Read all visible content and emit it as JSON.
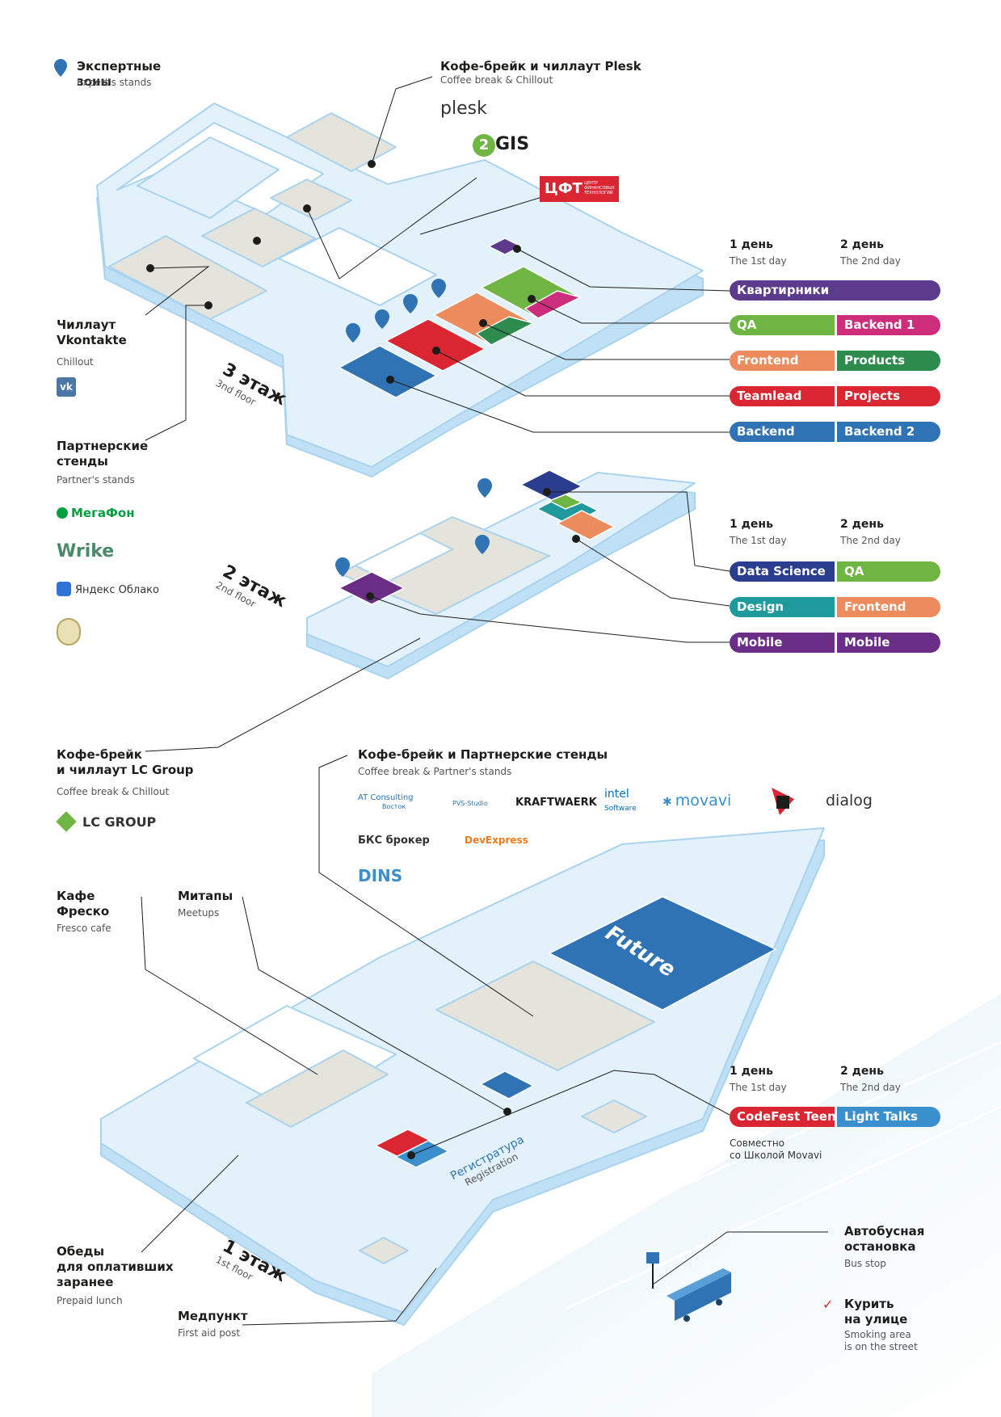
{
  "legend": {
    "expert_title": "Экспертные зоны",
    "expert_sub": "Expert's stands"
  },
  "plesk_zone": {
    "title": "Кофе-брейк и чиллаут Plesk",
    "sub": "Coffee break & Chillout",
    "logo_plesk": "plesk",
    "logo_2gis": "GIS",
    "logo_2gis_num": "2",
    "logo_cft": "ЦФТ",
    "logo_cft_small": "ЦЕНТР\nФИНАНСОВЫХ\nТЕХНОЛОГИЙ"
  },
  "vk_zone": {
    "title": "Чиллаут\nVkontakte",
    "sub": "Chillout",
    "logo": "vk"
  },
  "partners_zone": {
    "title": "Партнерские\nстенды",
    "sub": "Partner's stands",
    "megafon": "МегаФон",
    "wrike": "Wrike",
    "yandex": "Яндекс Облако"
  },
  "lc_zone": {
    "title": "Кофе-брейк\nи чиллаут LC Group",
    "sub": "Coffee break & Chillout",
    "logo": "LC GROUP"
  },
  "floor1_zone": {
    "title": "Кофе-брейк и Партнерские стенды",
    "sub": "Coffee break & Partner's stands",
    "logos": {
      "at": "AT Consulting",
      "at_sub": "Восток",
      "pvs": "PVS-Studio",
      "kraft": "KRAFTWAERK",
      "intel": "intel",
      "intel_sub": "Software",
      "movavi": "movavi",
      "dialog": "dialog",
      "bks": "БКС брокер",
      "devexpress": "DevExpress",
      "dins": "DINS"
    }
  },
  "fresco": {
    "title": "Кафе\nФреско",
    "sub": "Fresco cafe"
  },
  "meetups": {
    "title": "Митапы",
    "sub": "Meetups"
  },
  "lunch": {
    "title": "Обеды\nдля оплативших\nзаранее",
    "sub": "Prepaid lunch"
  },
  "firstaid": {
    "title": "Медпункт",
    "sub": "First aid post"
  },
  "busstop": {
    "title": "Автобусная\nостановка",
    "sub": "Bus stop"
  },
  "smoking": {
    "title": "Курить\nна улице",
    "sub": "Smoking area\nis on the street"
  },
  "registration": {
    "ru": "Регистратура",
    "en": "Registration"
  },
  "future": "Future",
  "floors": {
    "f3": {
      "n": "3 этаж",
      "e": "3nd floor"
    },
    "f2": {
      "n": "2 этаж",
      "e": "2nd floor"
    },
    "f1": {
      "n": "1 этаж",
      "e": "1st floor"
    }
  },
  "days": {
    "d1": "1 день",
    "d1_en": "The 1st day",
    "d2": "2 день",
    "d2_en": "The 2nd day"
  },
  "schedule3": [
    {
      "wide": "Квартирники",
      "wide_color": "#5d3b8c"
    },
    {
      "l": "QA",
      "lc": "#6fb543",
      "r": "Backend 1",
      "rc": "#cc2e7c"
    },
    {
      "l": "Frontend",
      "lc": "#ec8b5e",
      "r": "Products",
      "rc": "#2e8b4e"
    },
    {
      "l": "Teamlead",
      "lc": "#d92632",
      "r": "Projects",
      "rc": "#d92632"
    },
    {
      "l": "Backend",
      "lc": "#2f73b5",
      "r": "Backend 2",
      "rc": "#2f73b5"
    }
  ],
  "schedule2": [
    {
      "l": "Data Science",
      "lc": "#2a3d8f",
      "r": "QA",
      "rc": "#6fb543"
    },
    {
      "l": "Design",
      "lc": "#1e9a9c",
      "r": "Frontend",
      "rc": "#ec8b5e"
    },
    {
      "l": "Mobile",
      "lc": "#6b2e87",
      "r": "Mobile",
      "rc": "#6b2e87"
    }
  ],
  "schedule1": {
    "l": "CodeFest Teen",
    "lc": "#d92632",
    "r": "Light Talks",
    "rc": "#3a8fcd",
    "note": "Совместно\nсо Школой Movavi"
  },
  "colors": {
    "floor_fill": "#e3f1fb",
    "floor_edge": "#a9d3ef",
    "zone_grey": "#e4e3dc",
    "pin": "#2f73b5"
  }
}
